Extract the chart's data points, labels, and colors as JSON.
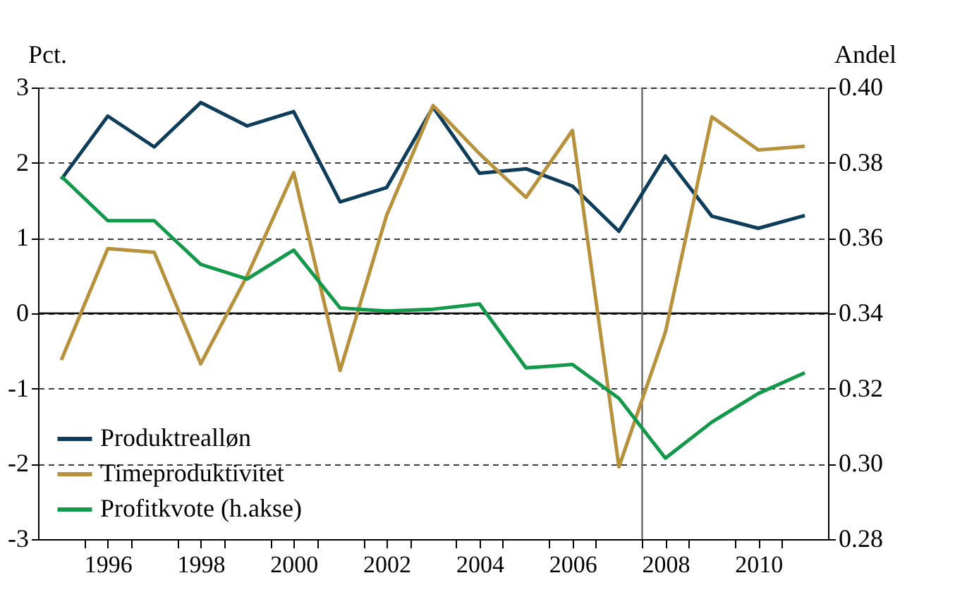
{
  "chart_data": {
    "type": "line",
    "ylabel": "Pct.",
    "y2label": "Andel",
    "x": [
      1995,
      1996,
      1997,
      1998,
      1999,
      2000,
      2001,
      2002,
      2003,
      2004,
      2005,
      2006,
      2007,
      2008,
      2009,
      2010,
      2011
    ],
    "series": [
      {
        "name": "Produktrealløn",
        "color": "#0e3d5c",
        "values": [
          1.78,
          2.62,
          2.21,
          2.8,
          2.49,
          2.68,
          1.48,
          1.67,
          2.74,
          1.86,
          1.92,
          1.69,
          1.09,
          2.09,
          1.29,
          1.13,
          1.3
        ]
      },
      {
        "name": "Timeproduktivitet",
        "color": "#b8913c",
        "values": [
          -0.62,
          0.86,
          0.81,
          -0.67,
          0.5,
          1.87,
          -0.76,
          1.3,
          2.76,
          2.12,
          1.54,
          2.43,
          -2.04,
          -0.25,
          2.61,
          2.17,
          2.22
        ]
      },
      {
        "name": "Profitkvote (h.akse)",
        "color": "#12994a",
        "axis": "y2",
        "values": [
          0.3764,
          0.3646,
          0.3646,
          0.353,
          0.3491,
          0.3568,
          0.3414,
          0.3406,
          0.3411,
          0.3425,
          0.3255,
          0.3264,
          0.3174,
          0.3015,
          0.3111,
          0.3187,
          0.3242
        ]
      }
    ],
    "xlim": [
      1994.5,
      2011.5
    ],
    "xticks": [
      {
        "value": 1995.5,
        "label": null
      },
      1996,
      {
        "value": 1996.5,
        "label": null
      },
      {
        "value": 1997.5,
        "label": null
      },
      1998,
      {
        "value": 1998.5,
        "label": null
      },
      {
        "value": 1999.5,
        "label": null
      },
      2000,
      {
        "value": 2000.5,
        "label": null
      },
      {
        "value": 2001.5,
        "label": null
      },
      2002,
      {
        "value": 2002.5,
        "label": null
      },
      {
        "value": 2003.5,
        "label": null
      },
      2004,
      {
        "value": 2004.5,
        "label": null
      },
      {
        "value": 2005.5,
        "label": null
      },
      2006,
      {
        "value": 2006.5,
        "label": null
      },
      {
        "value": 2007.5,
        "label": null
      },
      2008,
      {
        "value": 2008.5,
        "label": null
      },
      {
        "value": 2009.5,
        "label": null
      },
      2010,
      {
        "value": 2010.5,
        "label": null
      }
    ],
    "ylim": [
      -3,
      3
    ],
    "yticks": [
      -3,
      -2,
      -1,
      0,
      1,
      2,
      3
    ],
    "y2lim": [
      0.28,
      0.4
    ],
    "y2ticks": [
      {
        "value": 0.28,
        "label": "0.28"
      },
      {
        "value": 0.3,
        "label": "0.30"
      },
      {
        "value": 0.32,
        "label": "0.32"
      },
      {
        "value": 0.34,
        "label": "0.34"
      },
      {
        "value": 0.36,
        "label": "0.36"
      },
      {
        "value": 0.38,
        "label": "0.38"
      },
      {
        "value": 0.4,
        "label": "0.40"
      }
    ],
    "ref_lines": [
      {
        "axis": "y",
        "value": 0,
        "color": "#000000",
        "line_style": "solid"
      },
      {
        "axis": "x",
        "value": 2007.5,
        "color": "#666666",
        "line_style": "solid"
      }
    ],
    "grid": "y",
    "legend": "bottom left",
    "line_style": "solid"
  }
}
